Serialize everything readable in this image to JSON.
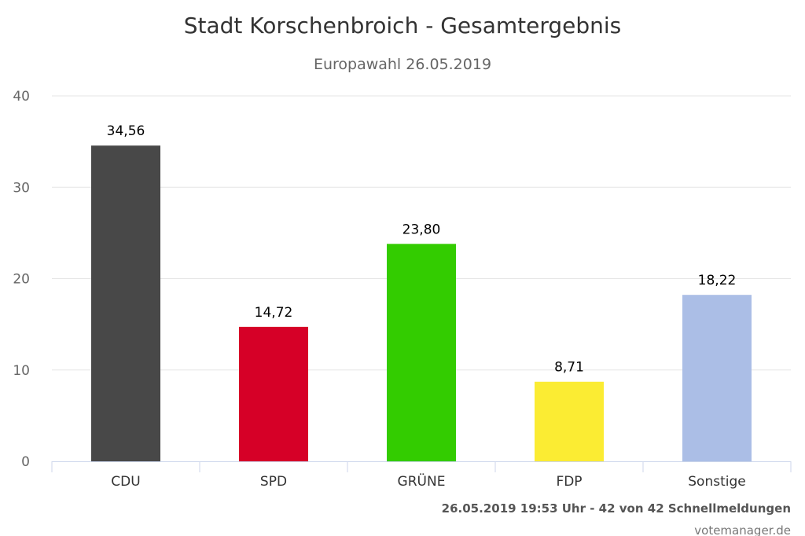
{
  "chart_data": {
    "type": "bar",
    "title": "Stadt Korschenbroich - Gesamtergebnis",
    "subtitle": "Europawahl 26.05.2019",
    "categories": [
      "CDU",
      "SPD",
      "GRÜNE",
      "FDP",
      "Sonstige"
    ],
    "values": [
      34.56,
      14.72,
      23.8,
      8.71,
      18.22
    ],
    "data_labels": [
      "34,56",
      "14,72",
      "23,80",
      "8,71",
      "18,22"
    ],
    "colors": [
      "#484848",
      "#d60027",
      "#33cc00",
      "#fbec33",
      "#abbee6"
    ],
    "ylim": [
      0,
      40
    ],
    "yticks": [
      "0",
      "10",
      "20",
      "30",
      "40"
    ],
    "grid": true,
    "legend": "none"
  },
  "footer": {
    "status": "26.05.2019 19:53 Uhr - 42 von 42 Schnellmeldungen",
    "credit": "votemanager.de"
  }
}
